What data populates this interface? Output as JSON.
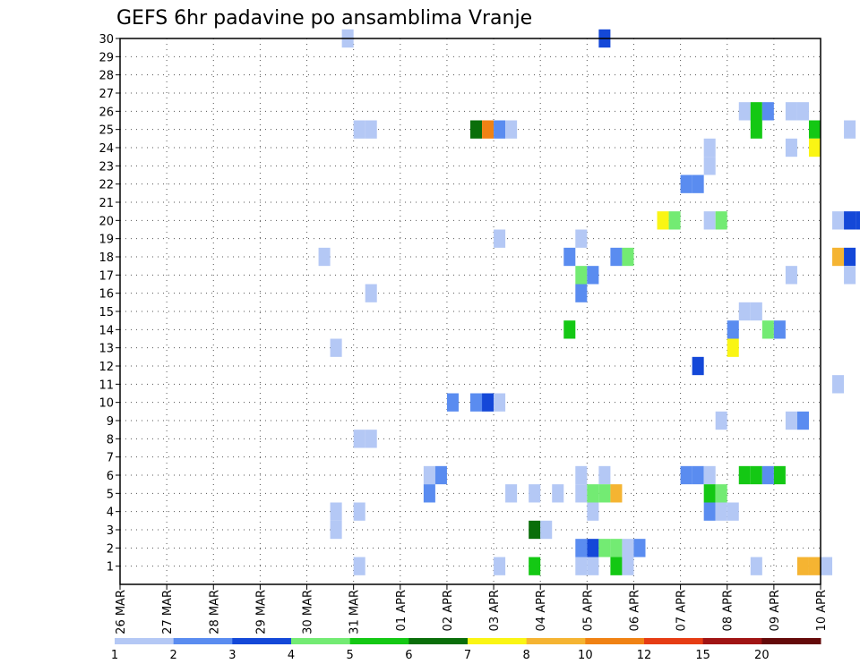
{
  "chart_data": {
    "type": "heatmap",
    "title": "GEFS 6hr padavine po ansamblima Vranje",
    "xlabel": "",
    "ylabel": "",
    "x_tick_labels": [
      "26 MAR",
      "27 MAR",
      "28 MAR",
      "29 MAR",
      "30 MAR",
      "31 MAR",
      "01 APR",
      "02 APR",
      "03 APR",
      "04 APR",
      "05 APR",
      "06 APR",
      "07 APR",
      "08 APR",
      "09 APR",
      "10 APR"
    ],
    "x_range": [
      0,
      60
    ],
    "x_units": "6-hour steps from 26 MAR 00Z",
    "y_range": [
      0,
      30
    ],
    "y_tick_labels": [
      1,
      2,
      3,
      4,
      5,
      6,
      7,
      8,
      9,
      10,
      11,
      12,
      13,
      14,
      15,
      16,
      17,
      18,
      19,
      20,
      21,
      22,
      23,
      24,
      25,
      26,
      27,
      28,
      29,
      30
    ],
    "grid": "dotted",
    "colorbar": {
      "labels": [
        "1",
        "2",
        "3",
        "4",
        "5",
        "6",
        "7",
        "8",
        "10",
        "12",
        "15",
        "20"
      ],
      "colors": [
        "#b4c8f5",
        "#5a8cf0",
        "#1448d8",
        "#73eb73",
        "#14c814",
        "#0a6e0a",
        "#faf514",
        "#f5b432",
        "#f08214",
        "#e63c14",
        "#a01414",
        "#640a0a"
      ],
      "thresholds": [
        1,
        2,
        3,
        4,
        5,
        6,
        7,
        8,
        10,
        12,
        15,
        20
      ]
    },
    "cells": [
      {
        "x": 19.5,
        "m": 30,
        "v": 1.5
      },
      {
        "x": 41.5,
        "m": 30,
        "v": 3.5
      },
      {
        "x": 53.5,
        "m": 26,
        "v": 1.5
      },
      {
        "x": 54.5,
        "m": 26,
        "v": 5.5
      },
      {
        "x": 55.5,
        "m": 26,
        "v": 2.5
      },
      {
        "x": 57.5,
        "m": 26,
        "v": 1.5
      },
      {
        "x": 58.5,
        "m": 26,
        "v": 1.5
      },
      {
        "x": 20.5,
        "m": 25,
        "v": 1.5
      },
      {
        "x": 21.5,
        "m": 25,
        "v": 1.5
      },
      {
        "x": 30.5,
        "m": 25,
        "v": 6.5
      },
      {
        "x": 31.5,
        "m": 25,
        "v": 11
      },
      {
        "x": 32.5,
        "m": 25,
        "v": 2.5
      },
      {
        "x": 33.5,
        "m": 25,
        "v": 1.5
      },
      {
        "x": 54.5,
        "m": 25,
        "v": 5.5
      },
      {
        "x": 59.5,
        "m": 25,
        "v": 5.5
      },
      {
        "x": 62.5,
        "m": 25,
        "v": 1.5
      },
      {
        "x": 57.5,
        "m": 24,
        "v": 1.5
      },
      {
        "x": 59.5,
        "m": 24,
        "v": 7.5
      },
      {
        "x": 50.5,
        "m": 24,
        "v": 1.5
      },
      {
        "x": 50.5,
        "m": 23,
        "v": 1.5
      },
      {
        "x": 48.5,
        "m": 22,
        "v": 2.5
      },
      {
        "x": 49.5,
        "m": 22,
        "v": 2.5
      },
      {
        "x": 46.5,
        "m": 20,
        "v": 7.5
      },
      {
        "x": 47.5,
        "m": 20,
        "v": 4.5
      },
      {
        "x": 50.5,
        "m": 20,
        "v": 1.5
      },
      {
        "x": 51.5,
        "m": 20,
        "v": 4.5
      },
      {
        "x": 61.5,
        "m": 20,
        "v": 1.5
      },
      {
        "x": 62.5,
        "m": 20,
        "v": 3.5
      },
      {
        "x": 63.5,
        "m": 20,
        "v": 3.5
      },
      {
        "x": 32.5,
        "m": 19,
        "v": 1.5
      },
      {
        "x": 39.5,
        "m": 19,
        "v": 1.5
      },
      {
        "x": 17.5,
        "m": 18,
        "v": 1.5
      },
      {
        "x": 38.5,
        "m": 18,
        "v": 2.5
      },
      {
        "x": 42.5,
        "m": 18,
        "v": 2.5
      },
      {
        "x": 43.5,
        "m": 18,
        "v": 4.5
      },
      {
        "x": 61.5,
        "m": 18,
        "v": 9
      },
      {
        "x": 62.5,
        "m": 18,
        "v": 3.5
      },
      {
        "x": 39.5,
        "m": 17,
        "v": 4.5
      },
      {
        "x": 40.5,
        "m": 17,
        "v": 2.5
      },
      {
        "x": 57.5,
        "m": 17,
        "v": 1.5
      },
      {
        "x": 62.5,
        "m": 17,
        "v": 1.5
      },
      {
        "x": 21.5,
        "m": 16,
        "v": 1.5
      },
      {
        "x": 39.5,
        "m": 16,
        "v": 2.5
      },
      {
        "x": 53.5,
        "m": 15,
        "v": 1.5
      },
      {
        "x": 54.5,
        "m": 15,
        "v": 1.5
      },
      {
        "x": 38.5,
        "m": 14,
        "v": 5.5
      },
      {
        "x": 52.5,
        "m": 14,
        "v": 2.5
      },
      {
        "x": 55.5,
        "m": 14,
        "v": 4.5
      },
      {
        "x": 56.5,
        "m": 14,
        "v": 2.5
      },
      {
        "x": 18.5,
        "m": 13,
        "v": 1.5
      },
      {
        "x": 52.5,
        "m": 13,
        "v": 7.5
      },
      {
        "x": 49.5,
        "m": 12,
        "v": 3.5
      },
      {
        "x": 61.5,
        "m": 11,
        "v": 1.5
      },
      {
        "x": 28.5,
        "m": 10,
        "v": 2.5
      },
      {
        "x": 30.5,
        "m": 10,
        "v": 2.5
      },
      {
        "x": 31.5,
        "m": 10,
        "v": 3.5
      },
      {
        "x": 32.5,
        "m": 10,
        "v": 1.5
      },
      {
        "x": 51.5,
        "m": 9,
        "v": 1.5
      },
      {
        "x": 57.5,
        "m": 9,
        "v": 1.5
      },
      {
        "x": 58.5,
        "m": 9,
        "v": 2.5
      },
      {
        "x": 20.5,
        "m": 8,
        "v": 1.5
      },
      {
        "x": 21.5,
        "m": 8,
        "v": 1.5
      },
      {
        "x": 26.5,
        "m": 6,
        "v": 1.5
      },
      {
        "x": 27.5,
        "m": 6,
        "v": 2.5
      },
      {
        "x": 39.5,
        "m": 6,
        "v": 1.5
      },
      {
        "x": 41.5,
        "m": 6,
        "v": 1.5
      },
      {
        "x": 48.5,
        "m": 6,
        "v": 2.5
      },
      {
        "x": 49.5,
        "m": 6,
        "v": 2.5
      },
      {
        "x": 50.5,
        "m": 6,
        "v": 1.5
      },
      {
        "x": 53.5,
        "m": 6,
        "v": 5.5
      },
      {
        "x": 54.5,
        "m": 6,
        "v": 5.5
      },
      {
        "x": 55.5,
        "m": 6,
        "v": 2.5
      },
      {
        "x": 56.5,
        "m": 6,
        "v": 5.5
      },
      {
        "x": 26.5,
        "m": 5,
        "v": 2.5
      },
      {
        "x": 33.5,
        "m": 5,
        "v": 1.5
      },
      {
        "x": 35.5,
        "m": 5,
        "v": 1.5
      },
      {
        "x": 37.5,
        "m": 5,
        "v": 1.5
      },
      {
        "x": 39.5,
        "m": 5,
        "v": 1.5
      },
      {
        "x": 40.5,
        "m": 5,
        "v": 4.5
      },
      {
        "x": 41.5,
        "m": 5,
        "v": 4.5
      },
      {
        "x": 42.5,
        "m": 5,
        "v": 9
      },
      {
        "x": 50.5,
        "m": 5,
        "v": 5.5
      },
      {
        "x": 51.5,
        "m": 5,
        "v": 4.5
      },
      {
        "x": 18.5,
        "m": 4,
        "v": 1.5
      },
      {
        "x": 20.5,
        "m": 4,
        "v": 1.5
      },
      {
        "x": 40.5,
        "m": 4,
        "v": 1.5
      },
      {
        "x": 50.5,
        "m": 4,
        "v": 2.5
      },
      {
        "x": 51.5,
        "m": 4,
        "v": 1.5
      },
      {
        "x": 52.5,
        "m": 4,
        "v": 1.5
      },
      {
        "x": 18.5,
        "m": 3,
        "v": 1.5
      },
      {
        "x": 35.5,
        "m": 3,
        "v": 6.5
      },
      {
        "x": 36.5,
        "m": 3,
        "v": 1.5
      },
      {
        "x": 39.5,
        "m": 2,
        "v": 2.5
      },
      {
        "x": 40.5,
        "m": 2,
        "v": 3.5
      },
      {
        "x": 41.5,
        "m": 2,
        "v": 4.5
      },
      {
        "x": 42.5,
        "m": 2,
        "v": 4.5
      },
      {
        "x": 43.5,
        "m": 2,
        "v": 1.5
      },
      {
        "x": 44.5,
        "m": 2,
        "v": 2.5
      },
      {
        "x": 20.5,
        "m": 1,
        "v": 1.5
      },
      {
        "x": 32.5,
        "m": 1,
        "v": 1.5
      },
      {
        "x": 35.5,
        "m": 1,
        "v": 5.5
      },
      {
        "x": 39.5,
        "m": 1,
        "v": 1.5
      },
      {
        "x": 40.5,
        "m": 1,
        "v": 1.5
      },
      {
        "x": 42.5,
        "m": 1,
        "v": 5.5
      },
      {
        "x": 43.5,
        "m": 1,
        "v": 1.5
      },
      {
        "x": 54.5,
        "m": 1,
        "v": 1.5
      },
      {
        "x": 58.5,
        "m": 1,
        "v": 9
      },
      {
        "x": 59.5,
        "m": 1,
        "v": 9
      },
      {
        "x": 60.5,
        "m": 1,
        "v": 1.5
      }
    ]
  }
}
